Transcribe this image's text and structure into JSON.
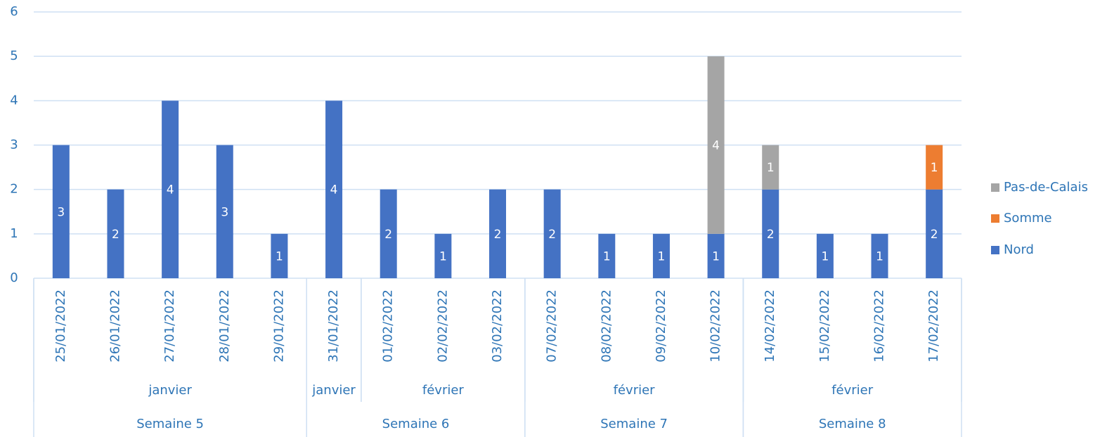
{
  "chart_data": {
    "type": "stacked_bar",
    "categories": [
      "25/01/2022",
      "26/01/2022",
      "27/01/2022",
      "28/01/2022",
      "29/01/2022",
      "31/01/2022",
      "01/02/2022",
      "02/02/2022",
      "03/02/2022",
      "07/02/2022",
      "08/02/2022",
      "09/02/2022",
      "10/02/2022",
      "14/02/2022",
      "15/02/2022",
      "16/02/2022",
      "17/02/2022"
    ],
    "category_groups": [
      [
        {
          "label": "janvier",
          "span": 5
        },
        {
          "label": "janvier",
          "span": 1
        },
        {
          "label": "février",
          "span": 3
        },
        {
          "label": "février",
          "span": 4
        },
        {
          "label": "février",
          "span": 4
        }
      ],
      [
        {
          "label": "Semaine 5",
          "span": 5
        },
        {
          "label": "Semaine 6",
          "span": 4
        },
        {
          "label": "Semaine 7",
          "span": 4
        },
        {
          "label": "Semaine 8",
          "span": 4
        }
      ]
    ],
    "series": [
      {
        "name": "Nord",
        "color": "#4472c4",
        "values": [
          3,
          2,
          4,
          3,
          1,
          4,
          2,
          1,
          2,
          2,
          1,
          1,
          1,
          2,
          1,
          1,
          2
        ]
      },
      {
        "name": "Somme",
        "color": "#ed7d31",
        "values": [
          null,
          null,
          null,
          null,
          null,
          null,
          null,
          null,
          null,
          null,
          null,
          null,
          null,
          null,
          null,
          null,
          1
        ]
      },
      {
        "name": "Pas-de-Calais",
        "color": "#a5a5a5",
        "values": [
          null,
          null,
          null,
          null,
          null,
          null,
          null,
          null,
          null,
          null,
          null,
          null,
          4,
          1,
          null,
          null,
          null
        ]
      }
    ],
    "ylim": [
      0,
      6
    ],
    "yticks": [
      0,
      1,
      2,
      3,
      4,
      5,
      6
    ],
    "grid": true,
    "legend": "right"
  }
}
